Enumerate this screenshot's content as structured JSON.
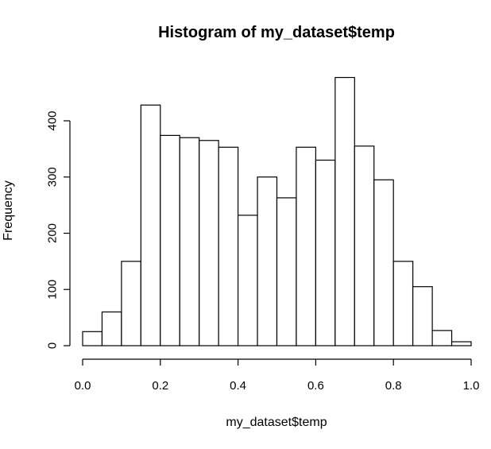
{
  "chart_data": {
    "type": "bar",
    "title": "Histogram of my_dataset$temp",
    "xlabel": "my_dataset$temp",
    "ylabel": "Frequency",
    "bin_edges": [
      0.0,
      0.05,
      0.1,
      0.15,
      0.2,
      0.25,
      0.3,
      0.35,
      0.4,
      0.45,
      0.5,
      0.55,
      0.6,
      0.65,
      0.7,
      0.75,
      0.8,
      0.85,
      0.9,
      0.95,
      1.0
    ],
    "values": [
      25,
      60,
      150,
      428,
      374,
      370,
      365,
      353,
      232,
      300,
      263,
      353,
      330,
      477,
      355,
      295,
      150,
      105,
      27,
      7
    ],
    "xlim": [
      0,
      1
    ],
    "ylim": [
      0,
      480
    ],
    "x_ticks": [
      0.0,
      0.2,
      0.4,
      0.6,
      0.8,
      1.0
    ],
    "x_tick_labels": [
      "0.0",
      "0.2",
      "0.4",
      "0.6",
      "0.8",
      "1.0"
    ],
    "y_ticks": [
      0,
      100,
      200,
      300,
      400
    ],
    "y_tick_labels": [
      "0",
      "100",
      "200",
      "300",
      "400"
    ],
    "grid": false,
    "legend": "none",
    "bar_fill": "#ffffff",
    "bar_stroke": "#000000"
  }
}
